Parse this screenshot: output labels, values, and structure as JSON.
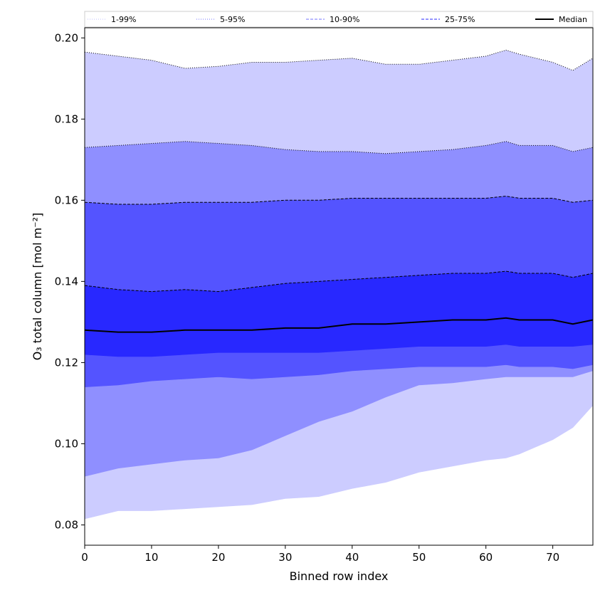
{
  "chart_data": {
    "type": "area",
    "title": "",
    "xlabel": "Binned row index",
    "ylabel": "O₃ total column [mol m⁻²]",
    "xlim": [
      0,
      76
    ],
    "ylim": [
      0.075,
      0.2025
    ],
    "x_ticks": [
      0,
      10,
      20,
      30,
      40,
      50,
      60,
      70
    ],
    "x_tick_labels": [
      "0",
      "10",
      "20",
      "30",
      "40",
      "50",
      "60",
      "70"
    ],
    "y_ticks": [
      0.08,
      0.1,
      0.12,
      0.14,
      0.16,
      0.18,
      0.2
    ],
    "y_tick_labels": [
      "0.08",
      "0.10",
      "0.12",
      "0.14",
      "0.16",
      "0.18",
      "0.20"
    ],
    "grid": false,
    "legend_position": "top",
    "colors": {
      "band_1_99": "#ccccff",
      "band_5_95": "#8f8fff",
      "band_10_90": "#5454ff",
      "band_25_75": "#2828ff",
      "median": "#000000"
    },
    "x_key": [
      0,
      5,
      10,
      15,
      20,
      25,
      30,
      35,
      40,
      45,
      50,
      55,
      60,
      63,
      65,
      70,
      73,
      76
    ],
    "series": [
      {
        "name": "1-99%",
        "lower": [
          0.0815,
          0.0835,
          0.0835,
          0.084,
          0.0845,
          0.085,
          0.0865,
          0.087,
          0.089,
          0.0905,
          0.093,
          0.0945,
          0.096,
          0.0965,
          0.0975,
          0.101,
          0.104,
          0.1095
        ],
        "upper": [
          0.1965,
          0.1955,
          0.1945,
          0.1925,
          0.193,
          0.194,
          0.194,
          0.1945,
          0.195,
          0.1935,
          0.1935,
          0.1945,
          0.1955,
          0.197,
          0.196,
          0.194,
          0.192,
          0.195
        ]
      },
      {
        "name": "5-95%",
        "lower": [
          0.092,
          0.094,
          0.095,
          0.096,
          0.0965,
          0.0985,
          0.102,
          0.1055,
          0.108,
          0.1115,
          0.1145,
          0.115,
          0.116,
          0.1165,
          0.1165,
          0.1165,
          0.1165,
          0.118
        ],
        "upper": [
          0.173,
          0.1735,
          0.174,
          0.1745,
          0.174,
          0.1735,
          0.1725,
          0.172,
          0.172,
          0.1715,
          0.172,
          0.1725,
          0.1735,
          0.1745,
          0.1735,
          0.1735,
          0.172,
          0.173
        ]
      },
      {
        "name": "10-90%",
        "lower": [
          0.114,
          0.1145,
          0.1155,
          0.116,
          0.1165,
          0.116,
          0.1165,
          0.117,
          0.118,
          0.1185,
          0.119,
          0.119,
          0.119,
          0.1195,
          0.119,
          0.119,
          0.1185,
          0.1195
        ],
        "upper": [
          0.1595,
          0.159,
          0.159,
          0.1595,
          0.1595,
          0.1595,
          0.16,
          0.16,
          0.1605,
          0.1605,
          0.1605,
          0.1605,
          0.1605,
          0.161,
          0.1605,
          0.1605,
          0.1595,
          0.16
        ]
      },
      {
        "name": "25-75%",
        "lower": [
          0.122,
          0.1215,
          0.1215,
          0.122,
          0.1225,
          0.1225,
          0.1225,
          0.1225,
          0.123,
          0.1235,
          0.124,
          0.124,
          0.124,
          0.1245,
          0.124,
          0.124,
          0.124,
          0.1245
        ],
        "upper": [
          0.139,
          0.138,
          0.1375,
          0.138,
          0.1375,
          0.1385,
          0.1395,
          0.14,
          0.1405,
          0.141,
          0.1415,
          0.142,
          0.142,
          0.1425,
          0.142,
          0.142,
          0.141,
          0.142
        ]
      },
      {
        "name": "Median",
        "values": [
          0.128,
          0.1275,
          0.1275,
          0.128,
          0.128,
          0.128,
          0.1285,
          0.1285,
          0.1295,
          0.1295,
          0.13,
          0.1305,
          0.1305,
          0.131,
          0.1305,
          0.1305,
          0.1295,
          0.1305
        ]
      }
    ],
    "legend": [
      {
        "label": "1-99%",
        "style": "dotted",
        "color": "#ccccff"
      },
      {
        "label": "5-95%",
        "style": "dotted",
        "color": "#8f8fff"
      },
      {
        "label": "10-90%",
        "style": "dashed",
        "color": "#8f8fff"
      },
      {
        "label": "25-75%",
        "style": "dashed",
        "color": "#5454ff"
      },
      {
        "label": "Median",
        "style": "solid",
        "color": "#000000"
      }
    ]
  }
}
